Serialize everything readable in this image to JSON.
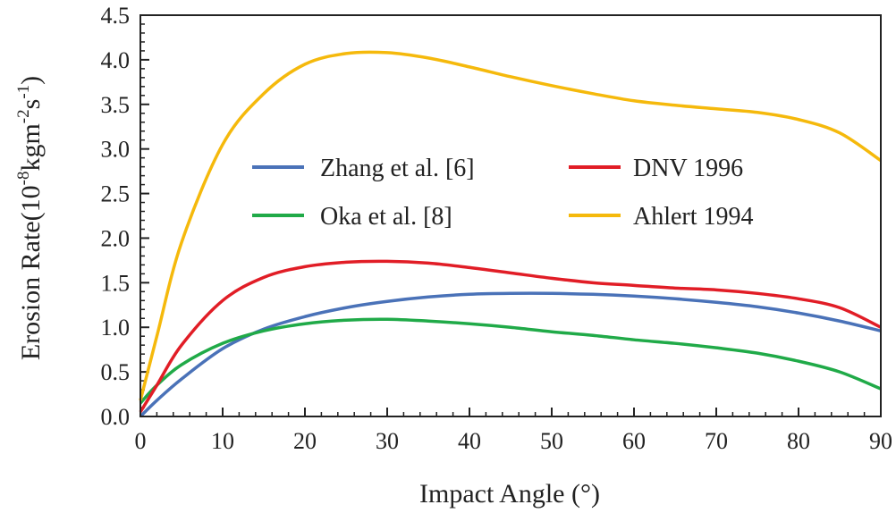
{
  "chart_data": {
    "type": "line",
    "title": "",
    "xlabel": "Impact Angle (°)",
    "ylabel": {
      "base": "Erosion Rate(10",
      "exp1": "-8",
      "mid": "kgm",
      "exp2": "-2",
      "mid2": "s",
      "exp3": "-1",
      "end": ")"
    },
    "xlim": [
      0,
      90
    ],
    "ylim": [
      0,
      4.5
    ],
    "x_ticks": [
      0,
      10,
      20,
      30,
      40,
      50,
      60,
      70,
      80,
      90
    ],
    "x_tick_labels": [
      "0",
      "10",
      "20",
      "30",
      "40",
      "50",
      "60",
      "70",
      "80",
      "90"
    ],
    "y_ticks": [
      0,
      0.5,
      1.0,
      1.5,
      2.0,
      2.5,
      3.0,
      3.5,
      4.0,
      4.5
    ],
    "y_tick_labels": [
      "0.0",
      "0.5",
      "1.0",
      "1.5",
      "2.0",
      "2.5",
      "3.0",
      "3.5",
      "4.0",
      "4.5"
    ],
    "grid": false,
    "legend_position": "center",
    "x": [
      0,
      2,
      5,
      10,
      15,
      20,
      25,
      30,
      35,
      40,
      45,
      50,
      55,
      60,
      65,
      70,
      75,
      80,
      85,
      90
    ],
    "series": [
      {
        "name": "Zhang et al. [6]",
        "color": "#4a72b8",
        "values": [
          0.0,
          0.18,
          0.42,
          0.76,
          0.98,
          1.12,
          1.22,
          1.29,
          1.34,
          1.37,
          1.38,
          1.38,
          1.37,
          1.35,
          1.32,
          1.28,
          1.23,
          1.16,
          1.07,
          0.96
        ]
      },
      {
        "name": "Oka et al. [8]",
        "color": "#20aa48",
        "values": [
          0.15,
          0.35,
          0.58,
          0.82,
          0.96,
          1.04,
          1.08,
          1.09,
          1.07,
          1.04,
          1.0,
          0.95,
          0.91,
          0.86,
          0.82,
          0.77,
          0.71,
          0.62,
          0.5,
          0.31
        ]
      },
      {
        "name": "DNV 1996",
        "color": "#e11d26",
        "values": [
          0.05,
          0.35,
          0.8,
          1.3,
          1.56,
          1.68,
          1.73,
          1.74,
          1.72,
          1.67,
          1.61,
          1.55,
          1.5,
          1.47,
          1.44,
          1.42,
          1.38,
          1.32,
          1.22,
          1.0
        ]
      },
      {
        "name": "Ahlert 1994",
        "color": "#f5b90c",
        "values": [
          0.18,
          0.9,
          1.95,
          3.05,
          3.62,
          3.95,
          4.07,
          4.08,
          4.02,
          3.92,
          3.81,
          3.71,
          3.62,
          3.54,
          3.49,
          3.45,
          3.41,
          3.33,
          3.18,
          2.87
        ]
      }
    ]
  }
}
